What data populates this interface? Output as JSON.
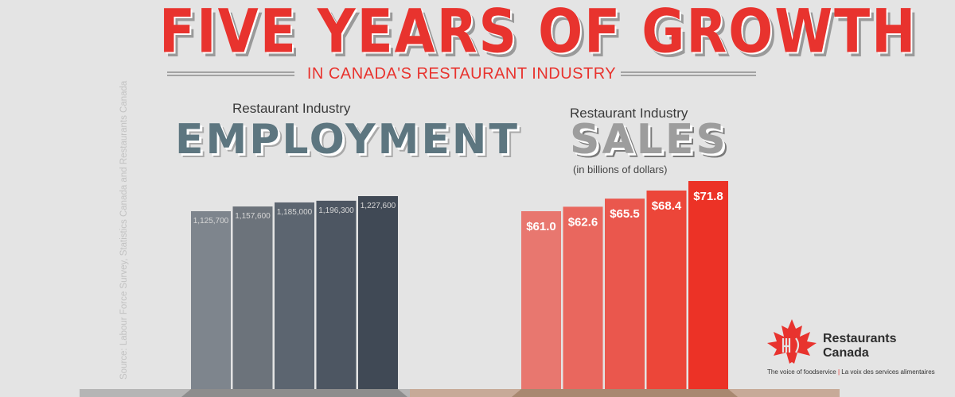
{
  "header": {
    "title": "FIVE YEARS OF GROWTH",
    "subtitle": "IN CANADA'S RESTAURANT INDUSTRY"
  },
  "source_note": "Source:  Labour Force Survey, Statistics Canada and Restaurants Canada",
  "employment": {
    "small_label": "Restaurant Industry",
    "big_label": "EMPLOYMENT"
  },
  "sales": {
    "small_label": "Restaurant Industry",
    "big_label": "SALES",
    "unit_note": "(in billions of dollars)"
  },
  "logo": {
    "name_line1": "Restaurants",
    "name_line2": "Canada",
    "tagline_en": "The voice of foodservice",
    "tagline_fr": "La voix des services alimentaires"
  },
  "colors": {
    "title_red": "#e8332e",
    "employment_bars": [
      "#7e858d",
      "#6c737b",
      "#5c6570",
      "#4d5662",
      "#404955"
    ],
    "sales_bars": [
      "#e8776f",
      "#e9675e",
      "#ea574d",
      "#ec4639",
      "#ec3226"
    ]
  },
  "chart_data": [
    {
      "type": "bar",
      "categories": [
        "",
        "",
        "",
        "",
        ""
      ],
      "values": [
        1125700,
        1157600,
        1185000,
        1196300,
        1227600
      ],
      "data_labels": [
        "1,125,700",
        "1,157,600",
        "1,185,000",
        "1,196,300",
        "1,227,600"
      ],
      "title": "Restaurant Industry EMPLOYMENT",
      "xlabel": "",
      "ylabel": "",
      "ylim": [
        0,
        1400000
      ],
      "grid": false,
      "legend": "none"
    },
    {
      "type": "bar",
      "categories": [
        "",
        "",
        "",
        "",
        ""
      ],
      "values": [
        61.0,
        62.6,
        65.5,
        68.4,
        71.8
      ],
      "data_labels": [
        "$61.0",
        "$62.6",
        "$65.5",
        "$68.4",
        "$71.8"
      ],
      "title": "Restaurant Industry SALES",
      "subtitle": "(in billions of dollars)",
      "xlabel": "",
      "ylabel": "",
      "ylim": [
        0,
        82
      ],
      "grid": false,
      "legend": "none"
    }
  ]
}
